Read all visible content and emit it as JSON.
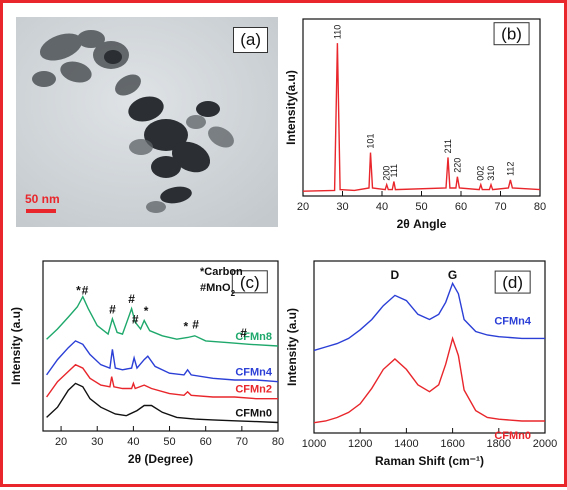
{
  "panels": {
    "a": {
      "label": "(a)",
      "scale_bar": "50 nm"
    }
  },
  "colors": {
    "frame": "#e8262b",
    "red": "#e8262b",
    "blue": "#2b3fd6",
    "green": "#1ea86b",
    "black": "#111111"
  },
  "chart_data": [
    {
      "panel": "b",
      "label": "(b)",
      "type": "line",
      "xlabel": "2θ Angle",
      "ylabel": "Intensity(a.u)",
      "xlim": [
        20,
        80
      ],
      "ylim": [
        0,
        1.1
      ],
      "xticks": [
        20,
        30,
        40,
        50,
        60,
        70,
        80
      ],
      "series": [
        {
          "color": "#e8262b",
          "points": [
            [
              20,
              0.03
            ],
            [
              28.0,
              0.035
            ],
            [
              28.7,
              0.95
            ],
            [
              29.4,
              0.04
            ],
            [
              33,
              0.035
            ],
            [
              36.7,
              0.05
            ],
            [
              37.1,
              0.27
            ],
            [
              37.6,
              0.05
            ],
            [
              40.8,
              0.04
            ],
            [
              41.2,
              0.07
            ],
            [
              41.6,
              0.04
            ],
            [
              42.6,
              0.04
            ],
            [
              43.0,
              0.09
            ],
            [
              43.4,
              0.04
            ],
            [
              56.2,
              0.05
            ],
            [
              56.7,
              0.24
            ],
            [
              57.2,
              0.05
            ],
            [
              58.7,
              0.05
            ],
            [
              59.1,
              0.12
            ],
            [
              59.6,
              0.05
            ],
            [
              64.6,
              0.04
            ],
            [
              65.0,
              0.07
            ],
            [
              65.4,
              0.04
            ],
            [
              67.2,
              0.04
            ],
            [
              67.6,
              0.07
            ],
            [
              68.0,
              0.04
            ],
            [
              72.0,
              0.05
            ],
            [
              72.5,
              0.1
            ],
            [
              73.0,
              0.05
            ],
            [
              80,
              0.04
            ]
          ]
        }
      ],
      "peaks": [
        {
          "x": 28.7,
          "y": 0.95,
          "label": "110"
        },
        {
          "x": 37.1,
          "y": 0.27,
          "label": "101"
        },
        {
          "x": 41.2,
          "y": 0.07,
          "label": "200"
        },
        {
          "x": 43.0,
          "y": 0.09,
          "label": "111"
        },
        {
          "x": 56.7,
          "y": 0.24,
          "label": "211"
        },
        {
          "x": 59.1,
          "y": 0.12,
          "label": "220"
        },
        {
          "x": 65.0,
          "y": 0.07,
          "label": "002"
        },
        {
          "x": 67.6,
          "y": 0.07,
          "label": "310"
        },
        {
          "x": 72.5,
          "y": 0.1,
          "label": "112"
        }
      ]
    },
    {
      "panel": "c",
      "label": "(c)",
      "type": "line",
      "xlabel": "2θ (Degree)",
      "ylabel": "Intensity (a.u)",
      "xlim": [
        15,
        80
      ],
      "ylim": [
        0,
        1.0
      ],
      "xticks": [
        20,
        30,
        40,
        50,
        60,
        70,
        80
      ],
      "legend": [
        "*Carbon",
        "#MnO2"
      ],
      "series": [
        {
          "name": "CFMn0",
          "color": "#111111",
          "points": [
            [
              16,
              0.08
            ],
            [
              19,
              0.14
            ],
            [
              22,
              0.24
            ],
            [
              24,
              0.28
            ],
            [
              26,
              0.26
            ],
            [
              28,
              0.19
            ],
            [
              31,
              0.14
            ],
            [
              35,
              0.1
            ],
            [
              38,
              0.09
            ],
            [
              41,
              0.12
            ],
            [
              43,
              0.15
            ],
            [
              45,
              0.15
            ],
            [
              48,
              0.11
            ],
            [
              52,
              0.08
            ],
            [
              57,
              0.07
            ],
            [
              62,
              0.065
            ],
            [
              68,
              0.06
            ],
            [
              74,
              0.055
            ],
            [
              80,
              0.05
            ]
          ]
        },
        {
          "name": "CFMn2",
          "color": "#e8262b",
          "points": [
            [
              16,
              0.2
            ],
            [
              19,
              0.29
            ],
            [
              22,
              0.35
            ],
            [
              24,
              0.39
            ],
            [
              26,
              0.37
            ],
            [
              28,
              0.31
            ],
            [
              31,
              0.27
            ],
            [
              33.5,
              0.26
            ],
            [
              34,
              0.32
            ],
            [
              34.6,
              0.26
            ],
            [
              37,
              0.25
            ],
            [
              39.5,
              0.25
            ],
            [
              40,
              0.28
            ],
            [
              40.5,
              0.25
            ],
            [
              43,
              0.27
            ],
            [
              45,
              0.25
            ],
            [
              50,
              0.22
            ],
            [
              54,
              0.21
            ],
            [
              55,
              0.23
            ],
            [
              56,
              0.21
            ],
            [
              62,
              0.2
            ],
            [
              68,
              0.2
            ],
            [
              74,
              0.19
            ],
            [
              80,
              0.19
            ]
          ]
        },
        {
          "name": "CFMn4",
          "color": "#2b3fd6",
          "points": [
            [
              16,
              0.33
            ],
            [
              19,
              0.42
            ],
            [
              22,
              0.49
            ],
            [
              24,
              0.53
            ],
            [
              26,
              0.51
            ],
            [
              28,
              0.45
            ],
            [
              31,
              0.39
            ],
            [
              33.5,
              0.37
            ],
            [
              34.2,
              0.48
            ],
            [
              35,
              0.37
            ],
            [
              37,
              0.36
            ],
            [
              39.5,
              0.37
            ],
            [
              40.2,
              0.43
            ],
            [
              41,
              0.37
            ],
            [
              43,
              0.42
            ],
            [
              44,
              0.44
            ],
            [
              46,
              0.38
            ],
            [
              50,
              0.34
            ],
            [
              54,
              0.33
            ],
            [
              55,
              0.36
            ],
            [
              56,
              0.33
            ],
            [
              62,
              0.31
            ],
            [
              68,
              0.3
            ],
            [
              74,
              0.3
            ],
            [
              80,
              0.29
            ]
          ]
        },
        {
          "name": "CFMn8",
          "color": "#1ea86b",
          "points": [
            [
              16,
              0.54
            ],
            [
              19,
              0.6
            ],
            [
              22,
              0.67
            ],
            [
              24.5,
              0.73
            ],
            [
              26,
              0.79
            ],
            [
              27.5,
              0.72
            ],
            [
              30,
              0.62
            ],
            [
              33,
              0.57
            ],
            [
              34.2,
              0.66
            ],
            [
              35.5,
              0.58
            ],
            [
              37,
              0.57
            ],
            [
              38.5,
              0.66
            ],
            [
              39.5,
              0.72
            ],
            [
              40.5,
              0.64
            ],
            [
              42,
              0.6
            ],
            [
              43,
              0.65
            ],
            [
              44.5,
              0.59
            ],
            [
              48,
              0.56
            ],
            [
              52,
              0.54
            ],
            [
              55,
              0.55
            ],
            [
              57,
              0.56
            ],
            [
              60,
              0.53
            ],
            [
              66,
              0.52
            ],
            [
              72,
              0.51
            ],
            [
              80,
              0.5
            ]
          ]
        }
      ],
      "marks": [
        {
          "x": 24.8,
          "y": 0.79,
          "label": "*"
        },
        {
          "x": 26.6,
          "y": 0.79,
          "label": "#"
        },
        {
          "x": 34.2,
          "y": 0.68,
          "label": "#"
        },
        {
          "x": 39.5,
          "y": 0.74,
          "label": "#"
        },
        {
          "x": 43.5,
          "y": 0.67,
          "label": "*"
        },
        {
          "x": 40.5,
          "y": 0.62,
          "label": "#"
        },
        {
          "x": 54.5,
          "y": 0.58,
          "label": "*"
        },
        {
          "x": 57.2,
          "y": 0.59,
          "label": "#"
        },
        {
          "x": 70.5,
          "y": 0.54,
          "label": "#"
        }
      ]
    },
    {
      "panel": "d",
      "label": "(d)",
      "type": "line",
      "xlabel": "Raman Shift (cm⁻¹)",
      "ylabel": "Intensity (a.u)",
      "xlim": [
        1000,
        2000
      ],
      "ylim": [
        0,
        1.0
      ],
      "xticks": [
        1000,
        1200,
        1400,
        1600,
        1800,
        2000
      ],
      "bands": [
        {
          "x": 1350,
          "label": "D"
        },
        {
          "x": 1600,
          "label": "G"
        }
      ],
      "series": [
        {
          "name": "CFMn4",
          "color": "#2b3fd6",
          "points": [
            [
              1000,
              0.48
            ],
            [
              1050,
              0.5
            ],
            [
              1100,
              0.52
            ],
            [
              1150,
              0.55
            ],
            [
              1200,
              0.6
            ],
            [
              1250,
              0.66
            ],
            [
              1300,
              0.74
            ],
            [
              1350,
              0.8
            ],
            [
              1400,
              0.77
            ],
            [
              1450,
              0.69
            ],
            [
              1500,
              0.66
            ],
            [
              1540,
              0.69
            ],
            [
              1570,
              0.76
            ],
            [
              1600,
              0.87
            ],
            [
              1625,
              0.81
            ],
            [
              1650,
              0.66
            ],
            [
              1700,
              0.59
            ],
            [
              1750,
              0.57
            ],
            [
              1800,
              0.56
            ],
            [
              1900,
              0.55
            ],
            [
              2000,
              0.55
            ]
          ]
        },
        {
          "name": "CFMn0",
          "color": "#e8262b",
          "points": [
            [
              1000,
              0.06
            ],
            [
              1050,
              0.07
            ],
            [
              1100,
              0.09
            ],
            [
              1150,
              0.12
            ],
            [
              1200,
              0.17
            ],
            [
              1250,
              0.26
            ],
            [
              1300,
              0.37
            ],
            [
              1350,
              0.43
            ],
            [
              1400,
              0.37
            ],
            [
              1450,
              0.28
            ],
            [
              1500,
              0.24
            ],
            [
              1540,
              0.28
            ],
            [
              1570,
              0.4
            ],
            [
              1600,
              0.55
            ],
            [
              1625,
              0.45
            ],
            [
              1650,
              0.25
            ],
            [
              1700,
              0.13
            ],
            [
              1750,
              0.09
            ],
            [
              1800,
              0.08
            ],
            [
              1900,
              0.07
            ],
            [
              2000,
              0.07
            ]
          ]
        }
      ]
    }
  ]
}
